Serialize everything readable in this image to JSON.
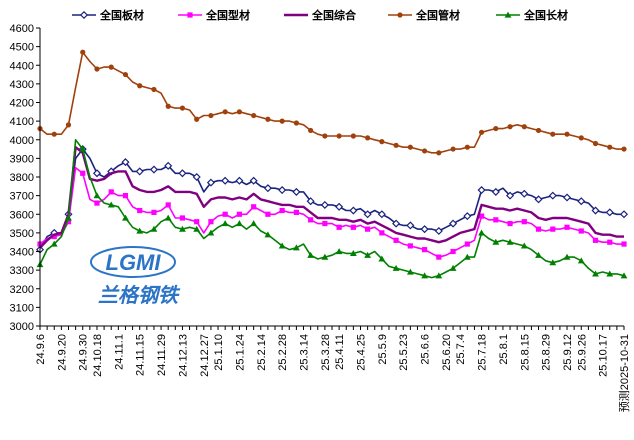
{
  "chart_data": {
    "type": "line",
    "title": "",
    "xlabel": "",
    "ylabel": "",
    "ylim": [
      3000,
      4600
    ],
    "y_step": 100,
    "grid": false,
    "legend_position": "top",
    "tick_labels": [
      "24.9.6",
      "24.9.20",
      "24.9.30",
      "24.10.18",
      "24.11.1",
      "24.11.15",
      "24.11.29",
      "24.12.13",
      "24.12.27",
      "25.1.10",
      "25.1.24",
      "25.2.14",
      "25.2.28",
      "25.3.14",
      "25.3.28",
      "25.4.11",
      "25.4.25",
      "25.5.9",
      "25.5.23",
      "25.6.6",
      "25.6.20",
      "25.7.4",
      "25.7.18",
      "25.8.1",
      "25.8.15",
      "25.8.29",
      "25.9.12",
      "25.9.26",
      "25.10.17",
      "预测2025-10-31"
    ],
    "x_count": 83,
    "series": [
      {
        "name": "全国板材",
        "color": "#1a237e",
        "marker": "diamond",
        "values": [
          3410,
          3480,
          3500,
          3500,
          3600,
          3900,
          3950,
          3900,
          3820,
          3800,
          3830,
          3860,
          3880,
          3830,
          3830,
          3840,
          3840,
          3840,
          3860,
          3820,
          3820,
          3820,
          3800,
          3720,
          3770,
          3780,
          3780,
          3770,
          3780,
          3760,
          3780,
          3750,
          3740,
          3740,
          3730,
          3730,
          3720,
          3720,
          3670,
          3650,
          3650,
          3650,
          3640,
          3620,
          3620,
          3630,
          3600,
          3620,
          3600,
          3580,
          3550,
          3540,
          3540,
          3520,
          3520,
          3520,
          3510,
          3530,
          3550,
          3570,
          3590,
          3600,
          3730,
          3730,
          3720,
          3740,
          3700,
          3720,
          3710,
          3700,
          3680,
          3690,
          3700,
          3700,
          3690,
          3680,
          3670,
          3660,
          3620,
          3610,
          3610,
          3600,
          3600
        ]
      },
      {
        "name": "全国型材",
        "color": "#ff00ff",
        "marker": "square",
        "values": [
          3440,
          3470,
          3480,
          3490,
          3560,
          3850,
          3820,
          3680,
          3660,
          3680,
          3720,
          3700,
          3700,
          3640,
          3620,
          3610,
          3610,
          3620,
          3650,
          3580,
          3580,
          3570,
          3560,
          3500,
          3560,
          3590,
          3600,
          3580,
          3600,
          3600,
          3640,
          3620,
          3600,
          3600,
          3620,
          3610,
          3610,
          3600,
          3570,
          3550,
          3550,
          3550,
          3530,
          3540,
          3530,
          3540,
          3520,
          3530,
          3500,
          3480,
          3460,
          3440,
          3430,
          3420,
          3410,
          3390,
          3370,
          3380,
          3400,
          3420,
          3440,
          3460,
          3590,
          3570,
          3570,
          3560,
          3550,
          3560,
          3560,
          3550,
          3520,
          3510,
          3520,
          3520,
          3530,
          3520,
          3510,
          3500,
          3460,
          3450,
          3450,
          3440,
          3440
        ]
      },
      {
        "name": "全国综合",
        "color": "#800080",
        "marker": "none",
        "values": [
          3420,
          3460,
          3490,
          3500,
          3600,
          3960,
          3930,
          3790,
          3780,
          3790,
          3820,
          3830,
          3830,
          3750,
          3730,
          3720,
          3720,
          3730,
          3750,
          3720,
          3720,
          3720,
          3710,
          3640,
          3680,
          3690,
          3690,
          3680,
          3690,
          3680,
          3710,
          3680,
          3670,
          3660,
          3650,
          3650,
          3640,
          3640,
          3610,
          3580,
          3580,
          3580,
          3570,
          3570,
          3560,
          3570,
          3550,
          3560,
          3540,
          3520,
          3500,
          3490,
          3480,
          3470,
          3470,
          3460,
          3450,
          3460,
          3480,
          3500,
          3510,
          3520,
          3650,
          3640,
          3630,
          3630,
          3620,
          3630,
          3620,
          3610,
          3580,
          3570,
          3580,
          3580,
          3580,
          3570,
          3560,
          3550,
          3500,
          3490,
          3490,
          3480,
          3480
        ]
      },
      {
        "name": "全国管材",
        "color": "#a0410d",
        "marker": "circle",
        "values": [
          4060,
          4030,
          4030,
          4030,
          4080,
          4280,
          4470,
          4420,
          4380,
          4390,
          4390,
          4370,
          4350,
          4310,
          4290,
          4280,
          4270,
          4250,
          4180,
          4170,
          4170,
          4160,
          4110,
          4130,
          4130,
          4140,
          4150,
          4140,
          4150,
          4140,
          4130,
          4120,
          4110,
          4100,
          4100,
          4100,
          4090,
          4080,
          4050,
          4030,
          4020,
          4020,
          4020,
          4020,
          4020,
          4020,
          4010,
          4000,
          3990,
          3980,
          3970,
          3960,
          3960,
          3950,
          3940,
          3930,
          3930,
          3940,
          3950,
          3950,
          3960,
          3960,
          4040,
          4050,
          4060,
          4060,
          4070,
          4080,
          4070,
          4060,
          4050,
          4040,
          4030,
          4030,
          4030,
          4020,
          4010,
          4000,
          3980,
          3970,
          3960,
          3950,
          3950
        ]
      },
      {
        "name": "全国长材",
        "color": "#008000",
        "marker": "triangle",
        "values": [
          3330,
          3410,
          3440,
          3480,
          3580,
          4000,
          3950,
          3800,
          3700,
          3660,
          3650,
          3640,
          3580,
          3530,
          3510,
          3500,
          3520,
          3560,
          3580,
          3530,
          3520,
          3530,
          3520,
          3470,
          3500,
          3530,
          3550,
          3530,
          3550,
          3520,
          3550,
          3510,
          3490,
          3460,
          3430,
          3410,
          3420,
          3440,
          3380,
          3360,
          3370,
          3380,
          3400,
          3390,
          3390,
          3400,
          3380,
          3400,
          3360,
          3320,
          3310,
          3300,
          3290,
          3280,
          3270,
          3260,
          3270,
          3290,
          3310,
          3340,
          3370,
          3370,
          3500,
          3470,
          3450,
          3460,
          3450,
          3440,
          3430,
          3410,
          3380,
          3350,
          3340,
          3350,
          3370,
          3370,
          3350,
          3310,
          3280,
          3290,
          3280,
          3280,
          3270
        ]
      }
    ]
  },
  "logo": {
    "mark": "LGMI",
    "name": "兰格钢铁",
    "color": "#1565c0"
  }
}
